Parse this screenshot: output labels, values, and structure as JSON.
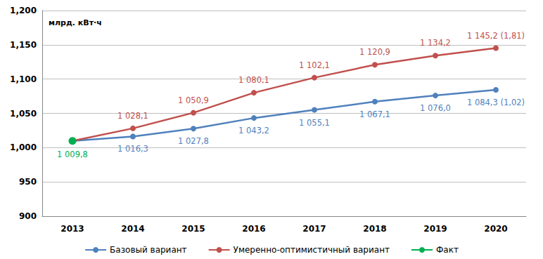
{
  "chart_data": {
    "type": "line",
    "ylabel": "млрд. кВт·ч",
    "categories": [
      "2013",
      "2014",
      "2015",
      "2016",
      "2017",
      "2018",
      "2019",
      "2020"
    ],
    "series": [
      {
        "name": "Базовый вариант",
        "color": "#4f81bd",
        "marker": "circle",
        "line_style": "solid",
        "values": [
          1009.8,
          1016.3,
          1027.8,
          1043.2,
          1055.1,
          1067.1,
          1076.0,
          1084.3
        ],
        "value_labels": [
          null,
          "1 016,3",
          "1 027,8",
          "1 043,2",
          "1 055,1",
          "1 067,1",
          "1 076,0",
          "1 084,3 (1,02)"
        ]
      },
      {
        "name": "Умеренно-оптимистичный вариант",
        "color": "#c0504d",
        "marker": "circle",
        "line_style": "solid",
        "values": [
          1009.8,
          1028.1,
          1050.9,
          1080.1,
          1102.1,
          1120.9,
          1134.2,
          1145.2
        ],
        "value_labels": [
          null,
          "1 028,1",
          "1 050,9",
          "1 080,1",
          "1 102,1",
          "1 120,9",
          "1 134,2",
          "1 145,2 (1,81)"
        ]
      },
      {
        "name": "Факт",
        "color": "#00b050",
        "marker": "circle",
        "line_style": "solid",
        "values": [
          1009.8,
          null,
          null,
          null,
          null,
          null,
          null,
          null
        ],
        "value_labels": [
          "1 009,8",
          null,
          null,
          null,
          null,
          null,
          null,
          null
        ]
      }
    ],
    "ylim": [
      900,
      1200
    ],
    "yticks": [
      900,
      950,
      1000,
      1050,
      1100,
      1150,
      1200
    ],
    "grid": true,
    "legend": "bottom",
    "data_labels": true
  }
}
